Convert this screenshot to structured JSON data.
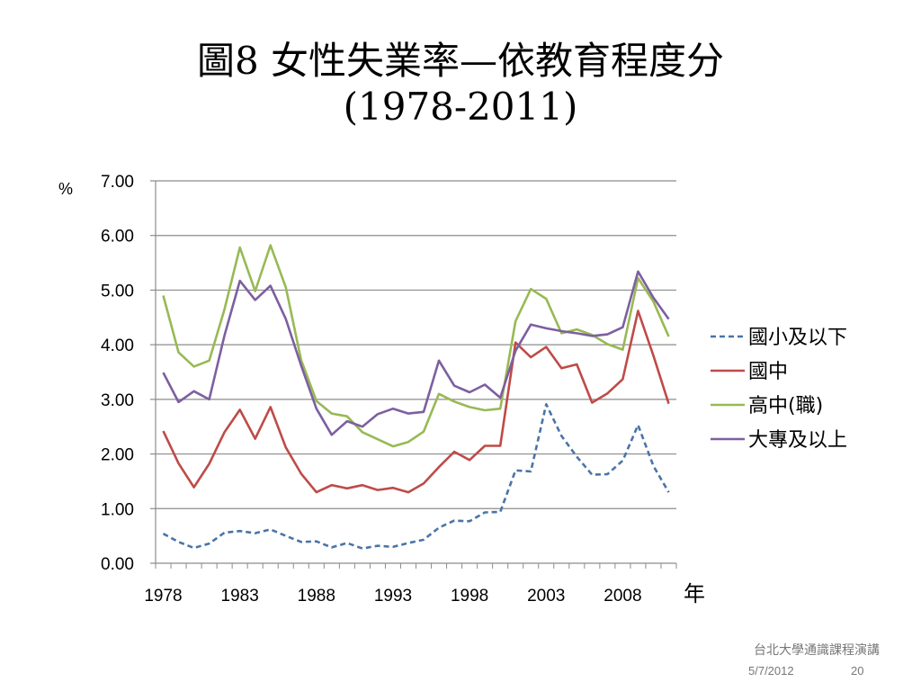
{
  "slide": {
    "title_line1": "圖8 女性失業率—依教育程度分",
    "title_line2": "(1978-2011)",
    "footer_org": "台北大學通識課程演講",
    "footer_date": "5/7/2012",
    "footer_page": "20"
  },
  "chart_data": {
    "type": "line",
    "title": "",
    "ylabel": "%",
    "xlabel": "年",
    "ylim": [
      0,
      7
    ],
    "yticks": [
      "0.00",
      "1.00",
      "2.00",
      "3.00",
      "4.00",
      "5.00",
      "6.00",
      "7.00"
    ],
    "xtick_labels": [
      "1978",
      "1983",
      "1988",
      "1993",
      "1998",
      "2003",
      "2008"
    ],
    "grid": true,
    "legend_position": "right",
    "x": [
      1978,
      1979,
      1980,
      1981,
      1982,
      1983,
      1984,
      1985,
      1986,
      1987,
      1988,
      1989,
      1990,
      1991,
      1992,
      1993,
      1994,
      1995,
      1996,
      1997,
      1998,
      1999,
      2000,
      2001,
      2002,
      2003,
      2004,
      2005,
      2006,
      2007,
      2008,
      2009,
      2010,
      2011
    ],
    "series": [
      {
        "name": "國小及以下",
        "color": "#4a74a8",
        "dash": true,
        "values": [
          0.54,
          0.39,
          0.28,
          0.36,
          0.56,
          0.59,
          0.55,
          0.62,
          0.5,
          0.39,
          0.4,
          0.29,
          0.37,
          0.27,
          0.32,
          0.3,
          0.37,
          0.43,
          0.65,
          0.78,
          0.77,
          0.93,
          0.94,
          1.7,
          1.68,
          2.91,
          2.33,
          1.95,
          1.62,
          1.63,
          1.88,
          2.53,
          1.78,
          1.3
        ]
      },
      {
        "name": "國中",
        "color": "#be4b48",
        "dash": false,
        "values": [
          2.42,
          1.83,
          1.39,
          1.82,
          2.4,
          2.81,
          2.28,
          2.86,
          2.12,
          1.64,
          1.3,
          1.43,
          1.37,
          1.43,
          1.34,
          1.38,
          1.3,
          1.46,
          1.76,
          2.04,
          1.89,
          2.15,
          2.15,
          4.04,
          3.77,
          3.96,
          3.57,
          3.64,
          2.94,
          3.11,
          3.37,
          4.62,
          3.8,
          2.92
        ]
      },
      {
        "name": "高中(職)",
        "color": "#98b954",
        "dash": false,
        "values": [
          4.9,
          3.86,
          3.6,
          3.71,
          4.65,
          5.78,
          4.98,
          5.82,
          5.05,
          3.72,
          2.97,
          2.74,
          2.69,
          2.4,
          2.27,
          2.14,
          2.22,
          2.41,
          3.1,
          2.96,
          2.86,
          2.8,
          2.83,
          4.43,
          5.02,
          4.84,
          4.21,
          4.28,
          4.18,
          4.01,
          3.91,
          5.22,
          4.79,
          4.15
        ]
      },
      {
        "name": "大專及以上",
        "color": "#7d5fa0",
        "dash": false,
        "values": [
          3.49,
          2.95,
          3.15,
          3.0,
          4.17,
          5.17,
          4.82,
          5.08,
          4.47,
          3.62,
          2.83,
          2.35,
          2.6,
          2.5,
          2.73,
          2.83,
          2.74,
          2.77,
          3.71,
          3.25,
          3.13,
          3.27,
          3.03,
          3.89,
          4.37,
          4.3,
          4.25,
          4.21,
          4.16,
          4.19,
          4.32,
          5.34,
          4.86,
          4.47
        ]
      }
    ]
  }
}
